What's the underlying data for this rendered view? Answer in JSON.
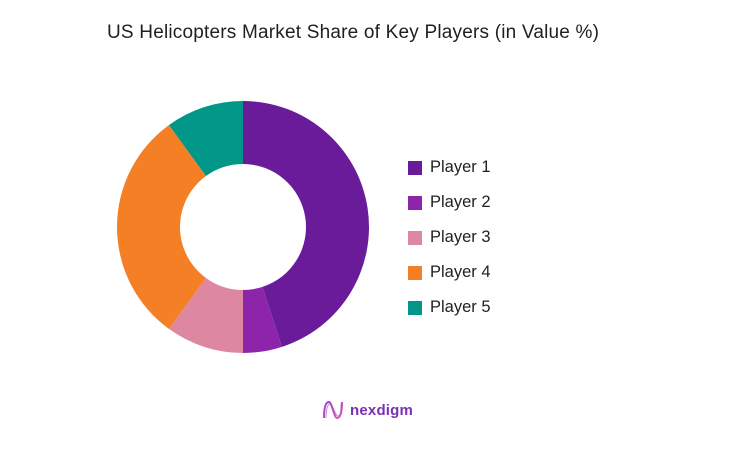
{
  "title": "US Helicopters Market Share of Key Players (in Value %)",
  "chart_data": {
    "type": "pie",
    "variant": "donut",
    "title": "US Helicopters Market Share of Key Players (in Value %)",
    "categories": [
      "Player 1",
      "Player 2",
      "Player 3",
      "Player 4",
      "Player 5"
    ],
    "values": [
      45,
      5,
      10,
      30,
      10
    ],
    "colors": [
      "#6A1B9A",
      "#8E24AA",
      "#DE87A1",
      "#F47F24",
      "#009688"
    ],
    "start_angle": "12 o'clock",
    "direction": "clockwise",
    "legend_position": "right"
  },
  "legend": {
    "items": [
      {
        "label": "Player 1",
        "color": "#6A1B9A"
      },
      {
        "label": "Player 2",
        "color": "#8E24AA"
      },
      {
        "label": "Player 3",
        "color": "#DE87A1"
      },
      {
        "label": "Player 4",
        "color": "#F47F24"
      },
      {
        "label": "Player 5",
        "color": "#009688"
      }
    ]
  },
  "logo": {
    "icon": "nexdigm-wave-icon",
    "text": "nexdigm"
  }
}
